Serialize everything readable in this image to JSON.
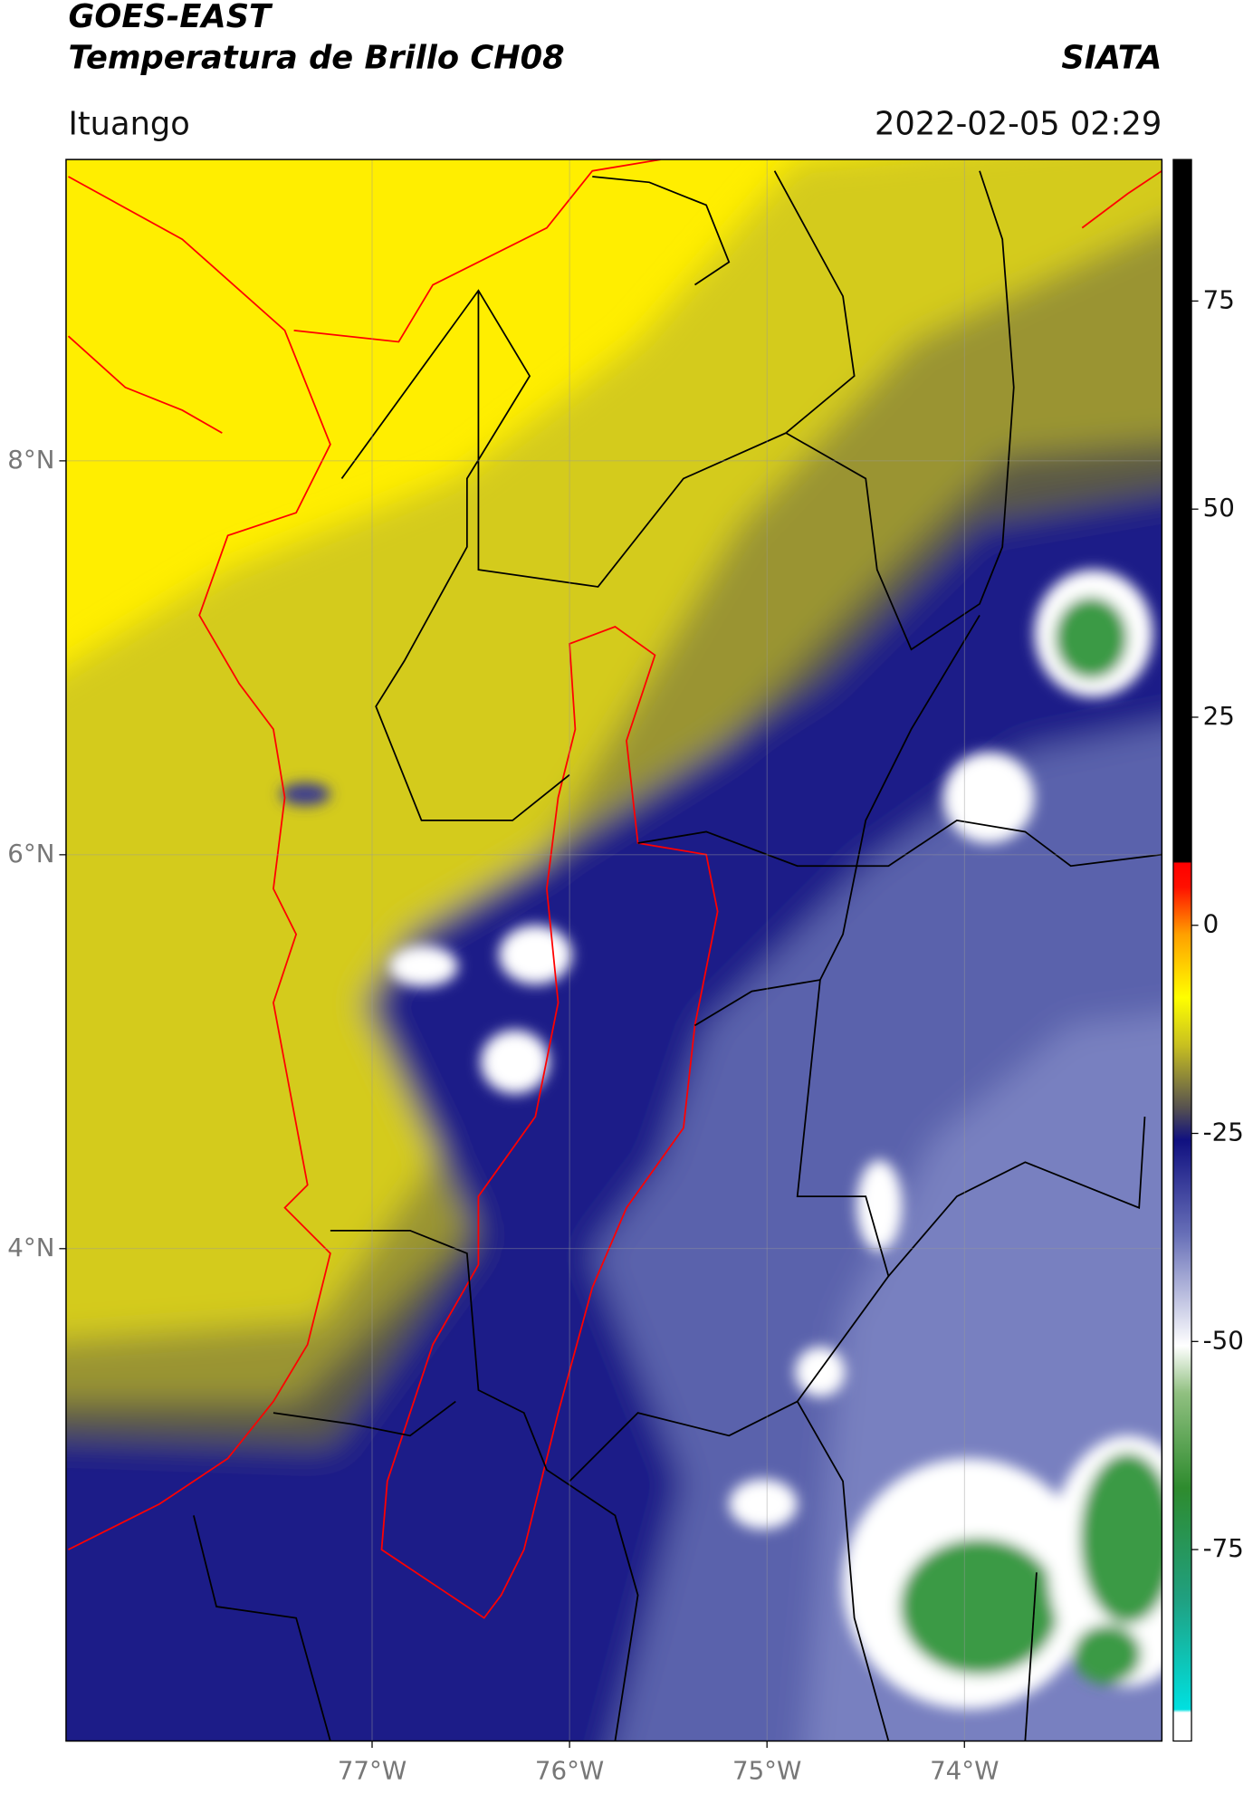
{
  "header": {
    "title": "GOES-EAST",
    "subtitle": "Temperatura de Brillo CH08",
    "org": "SIATA",
    "location": "Ituango",
    "datetime": "2022-02-05 02:29"
  },
  "map": {
    "xlim": [
      -78.55,
      -73.0
    ],
    "ylim": [
      1.5,
      9.53
    ],
    "xticks": [
      {
        "value": -77,
        "label": "77°W"
      },
      {
        "value": -76,
        "label": "76°W"
      },
      {
        "value": -75,
        "label": "75°W"
      },
      {
        "value": -74,
        "label": "74°W"
      }
    ],
    "yticks": [
      {
        "value": 8,
        "label": "8°N"
      },
      {
        "value": 6,
        "label": "6°N"
      },
      {
        "value": 4,
        "label": "4°N"
      }
    ],
    "grid": true
  },
  "colorbar": {
    "lim": [
      -98,
      92
    ],
    "ticks": [
      75,
      50,
      25,
      0,
      -25,
      -50,
      -75
    ]
  }
}
